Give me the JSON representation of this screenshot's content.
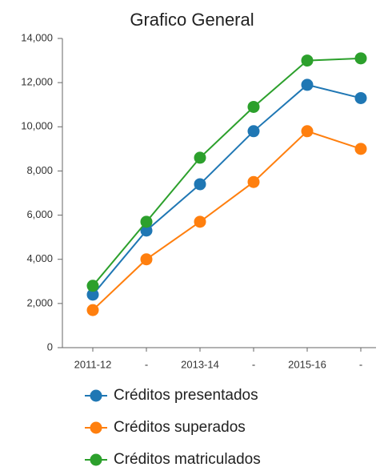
{
  "chart_data": {
    "type": "line",
    "title": "Grafico General",
    "categories": [
      "2011-12",
      "-",
      "2013-14",
      "-",
      "2015-16",
      "-"
    ],
    "series": [
      {
        "name": "Créditos presentados",
        "color": "#1f77b4",
        "values": [
          2400,
          5300,
          7400,
          9800,
          11900,
          11300
        ]
      },
      {
        "name": "Créditos superados",
        "color": "#ff7f0e",
        "values": [
          1700,
          4000,
          5700,
          7500,
          9800,
          9000
        ]
      },
      {
        "name": "Créditos matriculados",
        "color": "#2ca02c",
        "values": [
          2800,
          5700,
          8600,
          10900,
          13000,
          13100
        ]
      }
    ],
    "ylim": [
      0,
      14000
    ],
    "yticks": [
      0,
      {
        "value": 2000,
        "label": "2,000"
      },
      {
        "value": 4000,
        "label": "4,000"
      },
      {
        "value": 6000,
        "label": "6,000"
      },
      {
        "value": 8000,
        "label": "8,000"
      },
      {
        "value": 10000,
        "label": "10,000"
      },
      {
        "value": 12000,
        "label": "12,000"
      },
      {
        "value": 14000,
        "label": "14,000"
      }
    ],
    "grid": false
  }
}
